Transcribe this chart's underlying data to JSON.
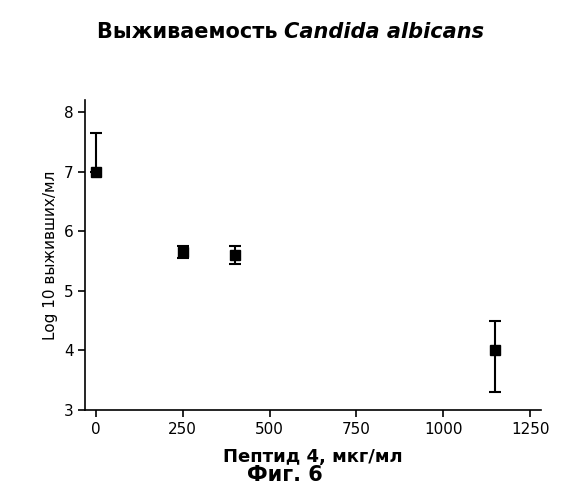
{
  "title_russian": "Выживаемость ",
  "title_italic": "Candida albicans",
  "xlabel": "Пептид 4, мкг/мл",
  "ylabel": "Log 10 выживших/мл",
  "caption": "Фиг. 6",
  "x": [
    0,
    250,
    400,
    1150
  ],
  "y": [
    7.0,
    5.65,
    5.6,
    4.0
  ],
  "yerr_upper": [
    0.65,
    0.1,
    0.15,
    0.5
  ],
  "yerr_lower": [
    0.0,
    0.1,
    0.15,
    0.7
  ],
  "xlim": [
    -30,
    1280
  ],
  "ylim": [
    3,
    8.2
  ],
  "xticks": [
    0,
    250,
    500,
    750,
    1000,
    1250
  ],
  "yticks": [
    3,
    4,
    5,
    6,
    7,
    8
  ],
  "line_color": "#000000",
  "marker": "s",
  "marker_color": "#000000",
  "marker_size": 7,
  "line_width": 1.8,
  "capsize": 4,
  "background_color": "#ffffff",
  "title_fontsize": 15,
  "xlabel_fontsize": 13,
  "ylabel_fontsize": 11,
  "tick_labelsize": 11,
  "caption_fontsize": 15
}
